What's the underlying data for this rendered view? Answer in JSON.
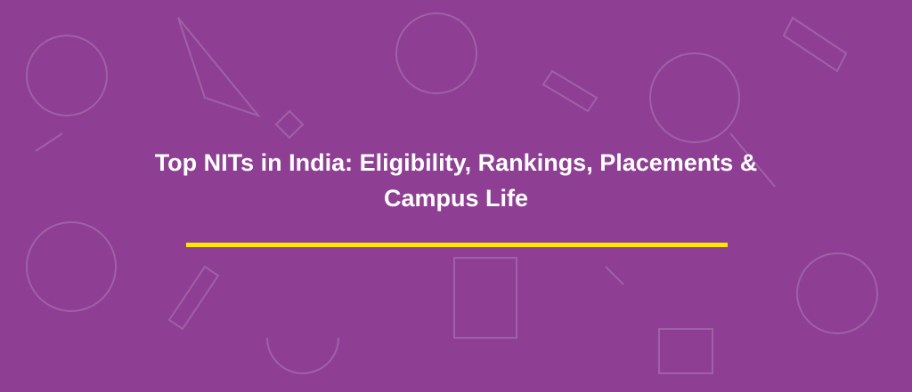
{
  "banner": {
    "title_line1": "Top NITs in India: Eligibility, Rankings, Placements &",
    "title_line2": "Campus Life",
    "background_color": "#8e3f94",
    "underline_color": "#ffe600"
  }
}
